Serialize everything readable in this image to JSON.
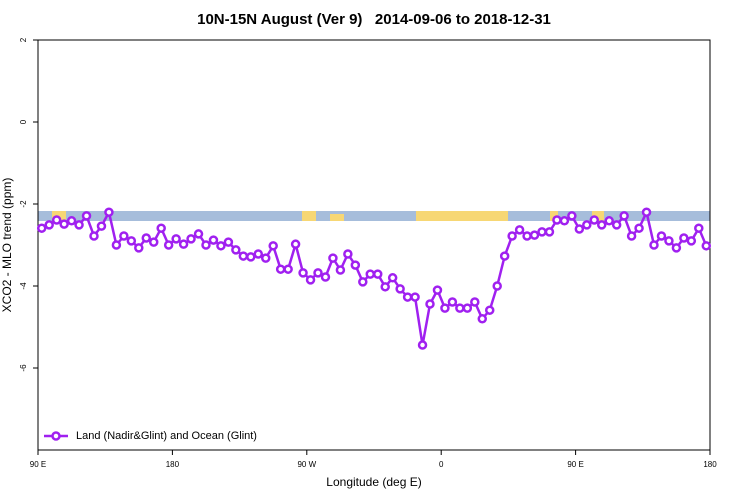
{
  "chart_data": {
    "type": "line",
    "title": "10N-15N August (Ver 9)   2014-09-06 to 2018-12-31",
    "x_label": "Longitude (deg E)",
    "y_label": "XCO2 - MLO trend (ppm)",
    "xlim": [
      90,
      540
    ],
    "ylim": [
      -8,
      2
    ],
    "xticks": [
      {
        "value": 90,
        "label": "90 E"
      },
      180,
      {
        "value": 270,
        "label": "90 W"
      },
      {
        "value": 360,
        "label": "0"
      },
      {
        "value": 450,
        "label": "90 E"
      },
      {
        "value": 540,
        "label": "180"
      }
    ],
    "yticks": [
      -6,
      -4,
      -2,
      0,
      2
    ],
    "legend": "lower left",
    "x": [
      92.5,
      97.5,
      102.5,
      107.5,
      112.5,
      117.5,
      122.5,
      127.5,
      132.5,
      137.5,
      142.5,
      147.5,
      152.5,
      157.5,
      162.5,
      167.5,
      172.5,
      177.5,
      182.5,
      187.5,
      192.5,
      197.5,
      202.5,
      207.5,
      212.5,
      217.5,
      222.5,
      227.5,
      232.5,
      237.5,
      242.5,
      247.5,
      252.5,
      257.5,
      262.5,
      267.5,
      272.5,
      277.5,
      282.5,
      287.5,
      292.5,
      297.5,
      302.5,
      307.5,
      312.5,
      317.5,
      322.5,
      327.5,
      332.5,
      337.5,
      342.5,
      347.5,
      352.5,
      357.5,
      362.5,
      367.5,
      372.5,
      377.5,
      382.5,
      387.5,
      392.5,
      397.5,
      402.5,
      407.5,
      412.5,
      417.5,
      422.5,
      427.5,
      432.5,
      437.5,
      442.5,
      447.5,
      452.5,
      457.5,
      462.5,
      467.5,
      472.5,
      477.5,
      482.5,
      487.5,
      492.5,
      497.5,
      502.5,
      507.5,
      512.5,
      517.5,
      522.5,
      527.5,
      532.5,
      537.5
    ],
    "series": [
      {
        "name": "Land (Nadir&Glint) and Ocean (Glint)",
        "color": "#a020f0",
        "values": [
          -2.59,
          -2.51,
          -2.39,
          -2.49,
          -2.41,
          -2.51,
          -2.29,
          -2.78,
          -2.54,
          -2.2,
          -3.0,
          -2.78,
          -2.9,
          -3.07,
          -2.83,
          -2.93,
          -2.59,
          -3.0,
          -2.85,
          -2.98,
          -2.85,
          -2.73,
          -3.0,
          -2.88,
          -3.02,
          -2.93,
          -3.12,
          -3.27,
          -3.29,
          -3.22,
          -3.32,
          -3.02,
          -3.59,
          -3.59,
          -2.98,
          -3.68,
          -3.85,
          -3.68,
          -3.78,
          -3.32,
          -3.61,
          -3.22,
          -3.49,
          -3.9,
          -3.71,
          -3.71,
          -4.02,
          -3.8,
          -4.07,
          -4.27,
          -4.27,
          -5.44,
          -4.44,
          -4.1,
          -4.54,
          -4.39,
          -4.54,
          -4.54,
          -4.39,
          -4.8,
          -4.59,
          -4.0,
          -3.27,
          -2.78,
          -2.63,
          -2.78,
          -2.76,
          -2.68,
          -2.68,
          -2.39,
          -2.41,
          -2.29,
          -2.61,
          -2.51,
          -2.39,
          -2.51,
          -2.41,
          -2.51,
          -2.29,
          -2.78,
          -2.59,
          -2.2,
          -3.0,
          -2.78,
          -2.9,
          -3.07,
          -2.83,
          -2.9,
          -2.59,
          -3.02
        ]
      }
    ]
  }
}
